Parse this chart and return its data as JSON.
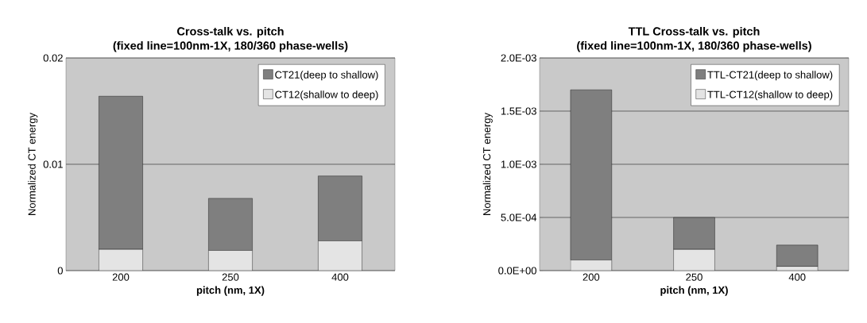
{
  "chart_data": [
    {
      "type": "bar",
      "title": "Cross-talk vs. pitch",
      "subtitle": "(fixed line=100nm-1X, 180/360 phase-wells)",
      "xlabel": "pitch (nm, 1X)",
      "ylabel": "Normalized CT energy",
      "categories": [
        "200",
        "250",
        "400"
      ],
      "stacked": true,
      "series": [
        {
          "name": "CT12(shallow to deep)",
          "color": "#e4e4e4",
          "values": [
            0.002,
            0.0019,
            0.0028
          ]
        },
        {
          "name": "CT21(deep to shallow)",
          "color": "#7f7f7f",
          "values": [
            0.0144,
            0.0049,
            0.0061
          ]
        }
      ],
      "ylim": [
        0,
        0.02
      ],
      "yticks": [
        0,
        0.01,
        0.02
      ],
      "grid": "y",
      "legend": "top right"
    },
    {
      "type": "bar",
      "title": "TTL Cross-talk vs. pitch",
      "subtitle": "(fixed line=100nm-1X, 180/360 phase-wells)",
      "xlabel": "pitch (nm, 1X)",
      "ylabel": "Normalized CT energy",
      "categories": [
        "200",
        "250",
        "400"
      ],
      "stacked": true,
      "series": [
        {
          "name": "TTL-CT12(shallow to deep)",
          "color": "#e4e4e4",
          "values": [
            0.0001,
            0.0002,
            4e-05
          ]
        },
        {
          "name": "TTL-CT21(deep to shallow)",
          "color": "#7f7f7f",
          "values": [
            0.0016,
            0.0003,
            0.0002
          ]
        }
      ],
      "ylim": [
        0,
        0.002
      ],
      "yticks": [
        {
          "value": 0,
          "label": "0.0E+00"
        },
        {
          "value": 0.0005,
          "label": "5.0E-04"
        },
        {
          "value": 0.001,
          "label": "1.0E-03"
        },
        {
          "value": 0.0015,
          "label": "1.5E-03"
        },
        {
          "value": 0.002,
          "label": "2.0E-03"
        }
      ],
      "grid": "y",
      "legend": "top right"
    }
  ]
}
